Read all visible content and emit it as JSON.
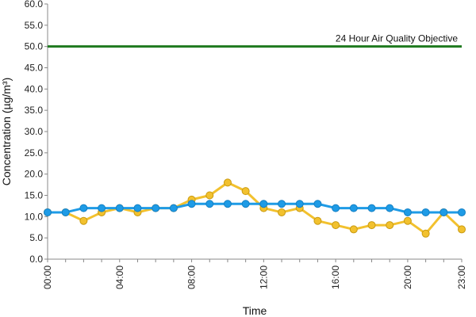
{
  "chart_data": {
    "type": "line",
    "title": "",
    "xlabel": "Time",
    "ylabel": "Concentration (µg/m³)",
    "ylim": [
      0,
      60
    ],
    "yticks": [
      "0.0",
      "5.0",
      "10.0",
      "15.0",
      "20.0",
      "25.0",
      "30.0",
      "35.0",
      "40.0",
      "45.0",
      "50.0",
      "55.0",
      "60.0"
    ],
    "x": [
      0,
      1,
      2,
      3,
      4,
      5,
      6,
      7,
      8,
      9,
      10,
      11,
      12,
      13,
      14,
      15,
      16,
      17,
      18,
      19,
      20,
      21,
      22,
      23
    ],
    "xticks": [
      {
        "x": 0,
        "label": "00:00"
      },
      {
        "x": 4,
        "label": "04:00"
      },
      {
        "x": 8,
        "label": "08:00"
      },
      {
        "x": 12,
        "label": "12:00"
      },
      {
        "x": 16,
        "label": "16:00"
      },
      {
        "x": 20,
        "label": "20:00"
      },
      {
        "x": 23,
        "label": "23:00"
      }
    ],
    "grid": false,
    "objective": {
      "value": 50,
      "label": "24 Hour Air Quality Objective",
      "color": "#1f7a1f"
    },
    "series": [
      {
        "color": "#f2c12e",
        "marker_color": "#f2c12e",
        "values": [
          11,
          11,
          9,
          11,
          12,
          11,
          12,
          12,
          14,
          15,
          18,
          16,
          12,
          11,
          12,
          9,
          8,
          7,
          8,
          8,
          9,
          6,
          11,
          7
        ]
      },
      {
        "color": "#1e9be6",
        "marker_color": "#1e9be6",
        "values": [
          11,
          11,
          12,
          12,
          12,
          12,
          12,
          12,
          13,
          13,
          13,
          13,
          13,
          13,
          13,
          13,
          12,
          12,
          12,
          12,
          11,
          11,
          11,
          11
        ]
      }
    ]
  }
}
